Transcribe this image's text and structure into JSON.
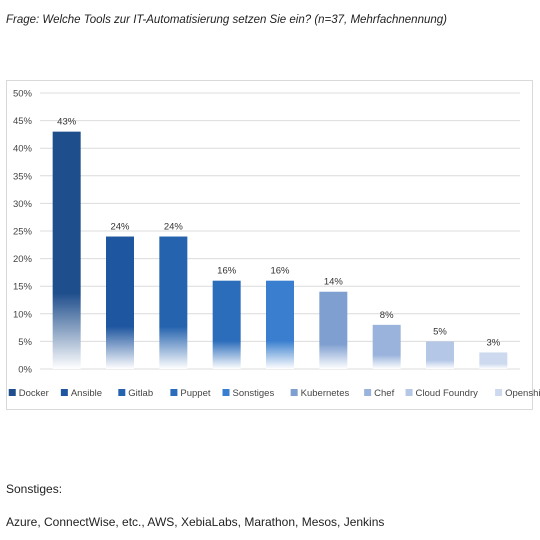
{
  "question": "Frage: Welche Tools zur IT-Automatisierung setzen Sie ein? (n=37, Mehrfachnennung)",
  "chart_data": {
    "type": "bar",
    "categories": [
      "Docker",
      "Ansible",
      "Gitlab",
      "Puppet",
      "Sonstiges",
      "Kubernetes",
      "Chef",
      "Cloud Foundry",
      "Openshift"
    ],
    "values": [
      43,
      24,
      24,
      16,
      16,
      14,
      8,
      5,
      3
    ],
    "data_labels": [
      "43%",
      "24%",
      "24%",
      "16%",
      "16%",
      "14%",
      "8%",
      "5%",
      "3%"
    ],
    "ylim": [
      0,
      50
    ],
    "yticks": [
      0,
      5,
      10,
      15,
      20,
      25,
      30,
      35,
      40,
      45,
      50
    ],
    "ytick_labels": [
      "0%",
      "5%",
      "10%",
      "15%",
      "20%",
      "25%",
      "30%",
      "35%",
      "40%",
      "45%",
      "50%"
    ],
    "grid": true,
    "legend_position": "bottom",
    "colors": [
      "#1f4e8c",
      "#1f56a0",
      "#2563ae",
      "#2b6cbb",
      "#3a7fcf",
      "#7f9fd1",
      "#9ab3dc",
      "#b4c7e7",
      "#ccd9ee"
    ]
  },
  "sonstiges": {
    "title": "Sonstiges:",
    "text": "Azure, ConnectWise, etc., AWS, XebiaLabs, Marathon, Mesos, Jenkins"
  }
}
